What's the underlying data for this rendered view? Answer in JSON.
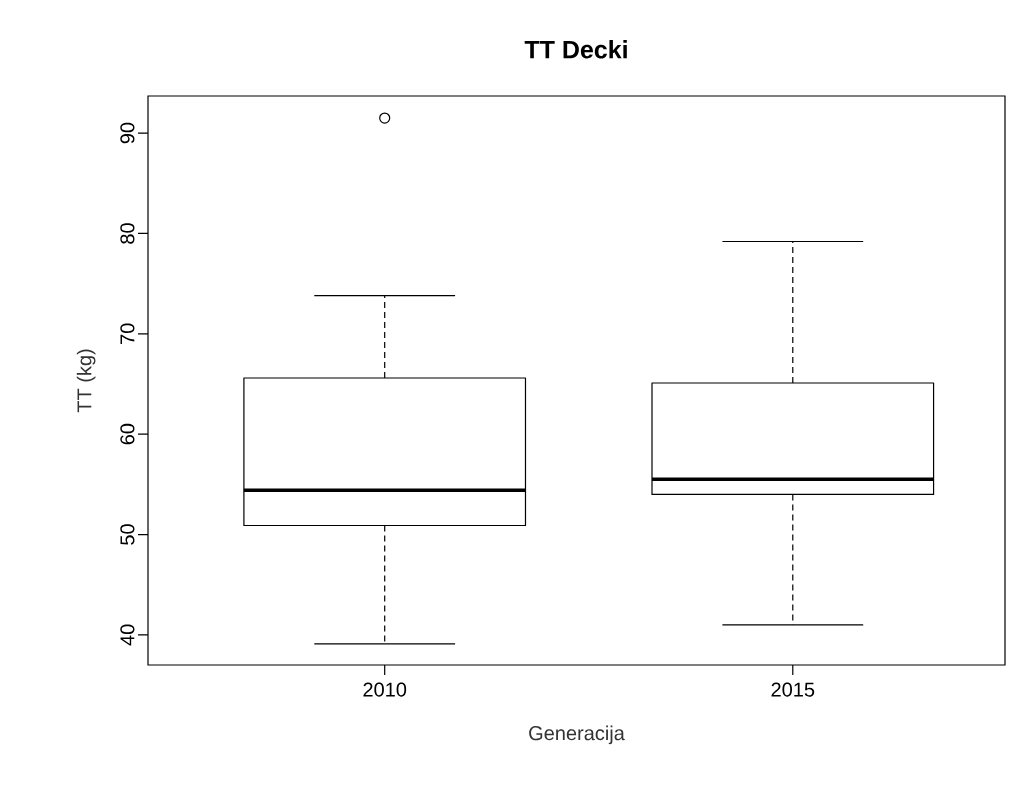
{
  "chart_data": {
    "type": "box",
    "title": "TT Decki",
    "xlabel": "Generacija",
    "ylabel": "TT (kg)",
    "categories": [
      "2010",
      "2015"
    ],
    "boxes": [
      {
        "low": 39.1,
        "q1": 50.9,
        "median": 54.4,
        "q3": 65.6,
        "high": 73.8,
        "outliers": [
          91.5
        ]
      },
      {
        "low": 41.0,
        "q1": 54.0,
        "median": 55.5,
        "q3": 65.1,
        "high": 79.2
      }
    ],
    "ylim": [
      37.0,
      93.7
    ],
    "yticks": [
      40,
      50,
      60,
      70,
      80,
      90
    ]
  }
}
